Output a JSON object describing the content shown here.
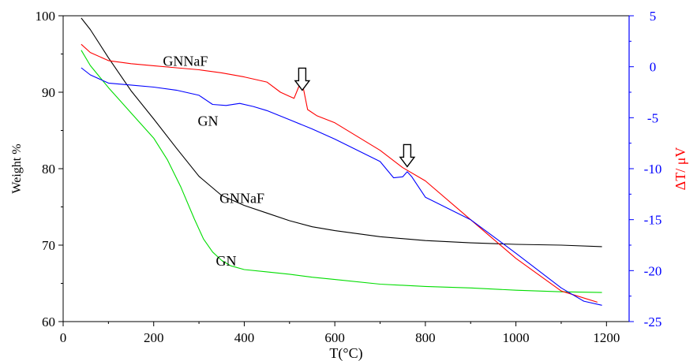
{
  "chart_data": {
    "type": "line",
    "xlabel": "T(°C)",
    "ylabel_left": "Weight %",
    "ylabel_right": "ΔT/ μV",
    "xlim": [
      0,
      1250
    ],
    "ylim_left": [
      60,
      100
    ],
    "ylim_right": [
      -25,
      5
    ],
    "x_ticks": [
      0,
      200,
      400,
      600,
      800,
      1000,
      1200
    ],
    "y_left_ticks": [
      60,
      70,
      80,
      90,
      100
    ],
    "y_right_ticks": [
      -25,
      -20,
      -15,
      -10,
      -5,
      0,
      5
    ],
    "grid": false,
    "legend": "none",
    "colors": {
      "gnnaf_tg": "#000000",
      "gn_tg": "#00dd00",
      "gnnaf_dta": "#ff0000",
      "gn_dta": "#0000ff",
      "right_axis": "#0000ff",
      "right_label": "#ff0000"
    },
    "series": [
      {
        "axis": "left",
        "color_key": "gnnaf_tg",
        "x": [
          40,
          60,
          100,
          150,
          200,
          250,
          300,
          350,
          400,
          450,
          500,
          550,
          600,
          700,
          800,
          900,
          1000,
          1100,
          1190
        ],
        "y": [
          99.7,
          98.2,
          94.5,
          90.2,
          86.5,
          82.7,
          79.0,
          76.5,
          75.2,
          74.2,
          73.2,
          72.4,
          71.9,
          71.1,
          70.6,
          70.3,
          70.1,
          70.0,
          69.8
        ]
      },
      {
        "axis": "left",
        "color_key": "gn_tg",
        "x": [
          40,
          60,
          100,
          150,
          200,
          230,
          260,
          290,
          310,
          330,
          350,
          370,
          400,
          450,
          500,
          550,
          600,
          700,
          800,
          900,
          1000,
          1100,
          1190
        ],
        "y": [
          95.5,
          93.5,
          90.6,
          87.3,
          84.0,
          81.2,
          77.6,
          73.4,
          70.8,
          69.1,
          68.0,
          67.3,
          66.8,
          66.5,
          66.2,
          65.8,
          65.5,
          64.9,
          64.6,
          64.4,
          64.1,
          63.9,
          63.8
        ]
      },
      {
        "axis": "right",
        "color_key": "gnnaf_dta",
        "x": [
          40,
          60,
          100,
          150,
          200,
          250,
          300,
          350,
          400,
          450,
          480,
          500,
          510,
          520,
          525,
          530,
          540,
          560,
          600,
          700,
          750,
          800,
          900,
          1000,
          1100,
          1180
        ],
        "y": [
          2.2,
          1.4,
          0.6,
          0.3,
          0.1,
          -0.1,
          -0.3,
          -0.6,
          -1.0,
          -1.5,
          -2.5,
          -2.9,
          -3.1,
          -2.0,
          -1.3,
          -2.0,
          -4.2,
          -4.8,
          -5.5,
          -8.2,
          -9.9,
          -11.2,
          -15.0,
          -18.8,
          -22.0,
          -23.1
        ]
      },
      {
        "axis": "right",
        "color_key": "gn_dta",
        "x": [
          40,
          60,
          100,
          150,
          200,
          250,
          300,
          330,
          360,
          390,
          420,
          450,
          500,
          550,
          600,
          700,
          730,
          750,
          760,
          770,
          800,
          900,
          1000,
          1100,
          1150,
          1190
        ],
        "y": [
          -0.1,
          -0.8,
          -1.6,
          -1.8,
          -2.0,
          -2.3,
          -2.8,
          -3.7,
          -3.8,
          -3.6,
          -3.9,
          -4.3,
          -5.2,
          -6.1,
          -7.1,
          -9.3,
          -10.9,
          -10.8,
          -10.3,
          -10.8,
          -12.8,
          -15.0,
          -18.3,
          -21.7,
          -23.0,
          -23.4
        ]
      }
    ],
    "annotations": [
      {
        "text": "GNNaF",
        "x": 270,
        "axis": "right",
        "y": 0.1
      },
      {
        "text": "GN",
        "x": 320,
        "axis": "right",
        "y": -5.8
      },
      {
        "text": "GNNaF",
        "x": 395,
        "axis": "left",
        "y": 75.5
      },
      {
        "text": "GN",
        "x": 360,
        "axis": "left",
        "y": 67.3
      }
    ],
    "arrows": [
      {
        "x": 528,
        "axis": "right",
        "tip_y": -2.3
      },
      {
        "x": 760,
        "axis": "right",
        "tip_y": -9.8
      }
    ]
  }
}
